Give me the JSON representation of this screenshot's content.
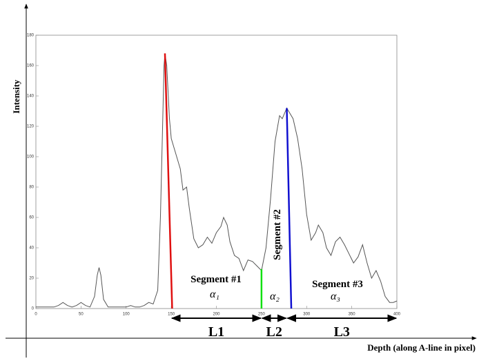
{
  "chart_data": {
    "type": "line",
    "x_label": "Depth (along A-line in pixel)",
    "y_label": "Intensity",
    "xlim": [
      0,
      400
    ],
    "ylim": [
      0,
      180
    ],
    "xticks": [
      0,
      50,
      100,
      150,
      200,
      250,
      300,
      350,
      400
    ],
    "yticks": [
      0,
      20,
      40,
      60,
      80,
      100,
      120,
      140,
      160,
      180
    ],
    "x": [
      0,
      10,
      20,
      25,
      30,
      35,
      40,
      45,
      50,
      55,
      60,
      65,
      68,
      70,
      72,
      75,
      80,
      90,
      100,
      105,
      110,
      115,
      120,
      125,
      130,
      135,
      138,
      140,
      142,
      143,
      145,
      148,
      150,
      155,
      160,
      163,
      167,
      170,
      175,
      180,
      185,
      190,
      195,
      200,
      205,
      208,
      212,
      215,
      220,
      225,
      230,
      235,
      240,
      245,
      250,
      255,
      260,
      265,
      270,
      273,
      278,
      285,
      290,
      295,
      300,
      305,
      310,
      313,
      318,
      322,
      327,
      332,
      337,
      342,
      347,
      352,
      357,
      362,
      367,
      372,
      377,
      382,
      387,
      392,
      396,
      400
    ],
    "series": [
      {
        "color": "#555555",
        "values": [
          1,
          1,
          1,
          2,
          4,
          2,
          1,
          2,
          4,
          2,
          1,
          8,
          22,
          27,
          22,
          6,
          1,
          1,
          1,
          2,
          1,
          1,
          2,
          4,
          3,
          12,
          60,
          110,
          160,
          168,
          160,
          125,
          112,
          102,
          92,
          78,
          80,
          66,
          46,
          40,
          42,
          47,
          43,
          50,
          54,
          60,
          55,
          44,
          35,
          33,
          25,
          32,
          31,
          28,
          25,
          40,
          72,
          110,
          127,
          125,
          132,
          125,
          112,
          92,
          62,
          45,
          50,
          55,
          50,
          40,
          35,
          44,
          47,
          42,
          36,
          30,
          34,
          42,
          30,
          20,
          25,
          18,
          8,
          4,
          4,
          5
        ]
      }
    ],
    "segment_lines": [
      {
        "color": "#e01010",
        "x": [
          143,
          151
        ],
        "y": [
          168,
          0
        ]
      },
      {
        "color": "#10e010",
        "x": [
          250,
          250
        ],
        "y": [
          26,
          0
        ]
      },
      {
        "color": "#1010d0",
        "x": [
          278,
          283
        ],
        "y": [
          132,
          0
        ]
      }
    ],
    "segment_labels": [
      {
        "name": "Segment #1",
        "angle": "α₁"
      },
      {
        "name": "Segment #2",
        "angle": "α₂"
      },
      {
        "name": "Segment #3",
        "angle": "α₃"
      }
    ],
    "spans": [
      {
        "label": "L1",
        "from": 150,
        "to": 250
      },
      {
        "label": "L2",
        "from": 250,
        "to": 278
      },
      {
        "label": "L3",
        "from": 278,
        "to": 400
      }
    ]
  }
}
